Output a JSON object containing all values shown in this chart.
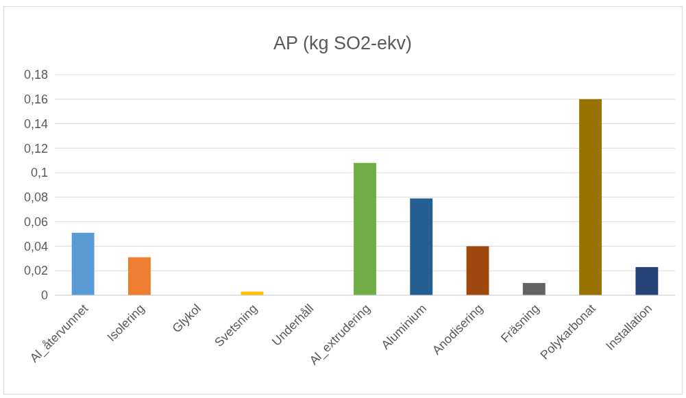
{
  "chart_data": {
    "type": "bar",
    "title": "AP (kg SO2-ekv)",
    "categories": [
      "Al_återvunnet",
      "Isolering",
      "Glykol",
      "Svetsning",
      "Underhåll",
      "Al_extrudering",
      "Aluminium",
      "Anodisering",
      "Fräsning",
      "Polykarbonat",
      "Installation"
    ],
    "values": [
      0.051,
      0.031,
      0,
      0.003,
      0,
      0.108,
      0.079,
      0.04,
      0.01,
      0.16,
      0.023
    ],
    "colors": [
      "#5b9bd5",
      "#ed7d31",
      "#a5a5a5",
      "#ffc000",
      "#4472c4",
      "#70ad47",
      "#255e91",
      "#9e480e",
      "#636363",
      "#997300",
      "#264478"
    ],
    "ylim": [
      0,
      0.18
    ],
    "yticks": [
      {
        "value": 0,
        "label": "0"
      },
      {
        "value": 0.02,
        "label": "0,02"
      },
      {
        "value": 0.04,
        "label": "0,04"
      },
      {
        "value": 0.06,
        "label": "0,06"
      },
      {
        "value": 0.08,
        "label": "0,08"
      },
      {
        "value": 0.1,
        "label": "0,1"
      },
      {
        "value": 0.12,
        "label": "0,12"
      },
      {
        "value": 0.14,
        "label": "0,14"
      },
      {
        "value": 0.16,
        "label": "0,16"
      },
      {
        "value": 0.18,
        "label": "0,18"
      }
    ],
    "grid": "y"
  }
}
